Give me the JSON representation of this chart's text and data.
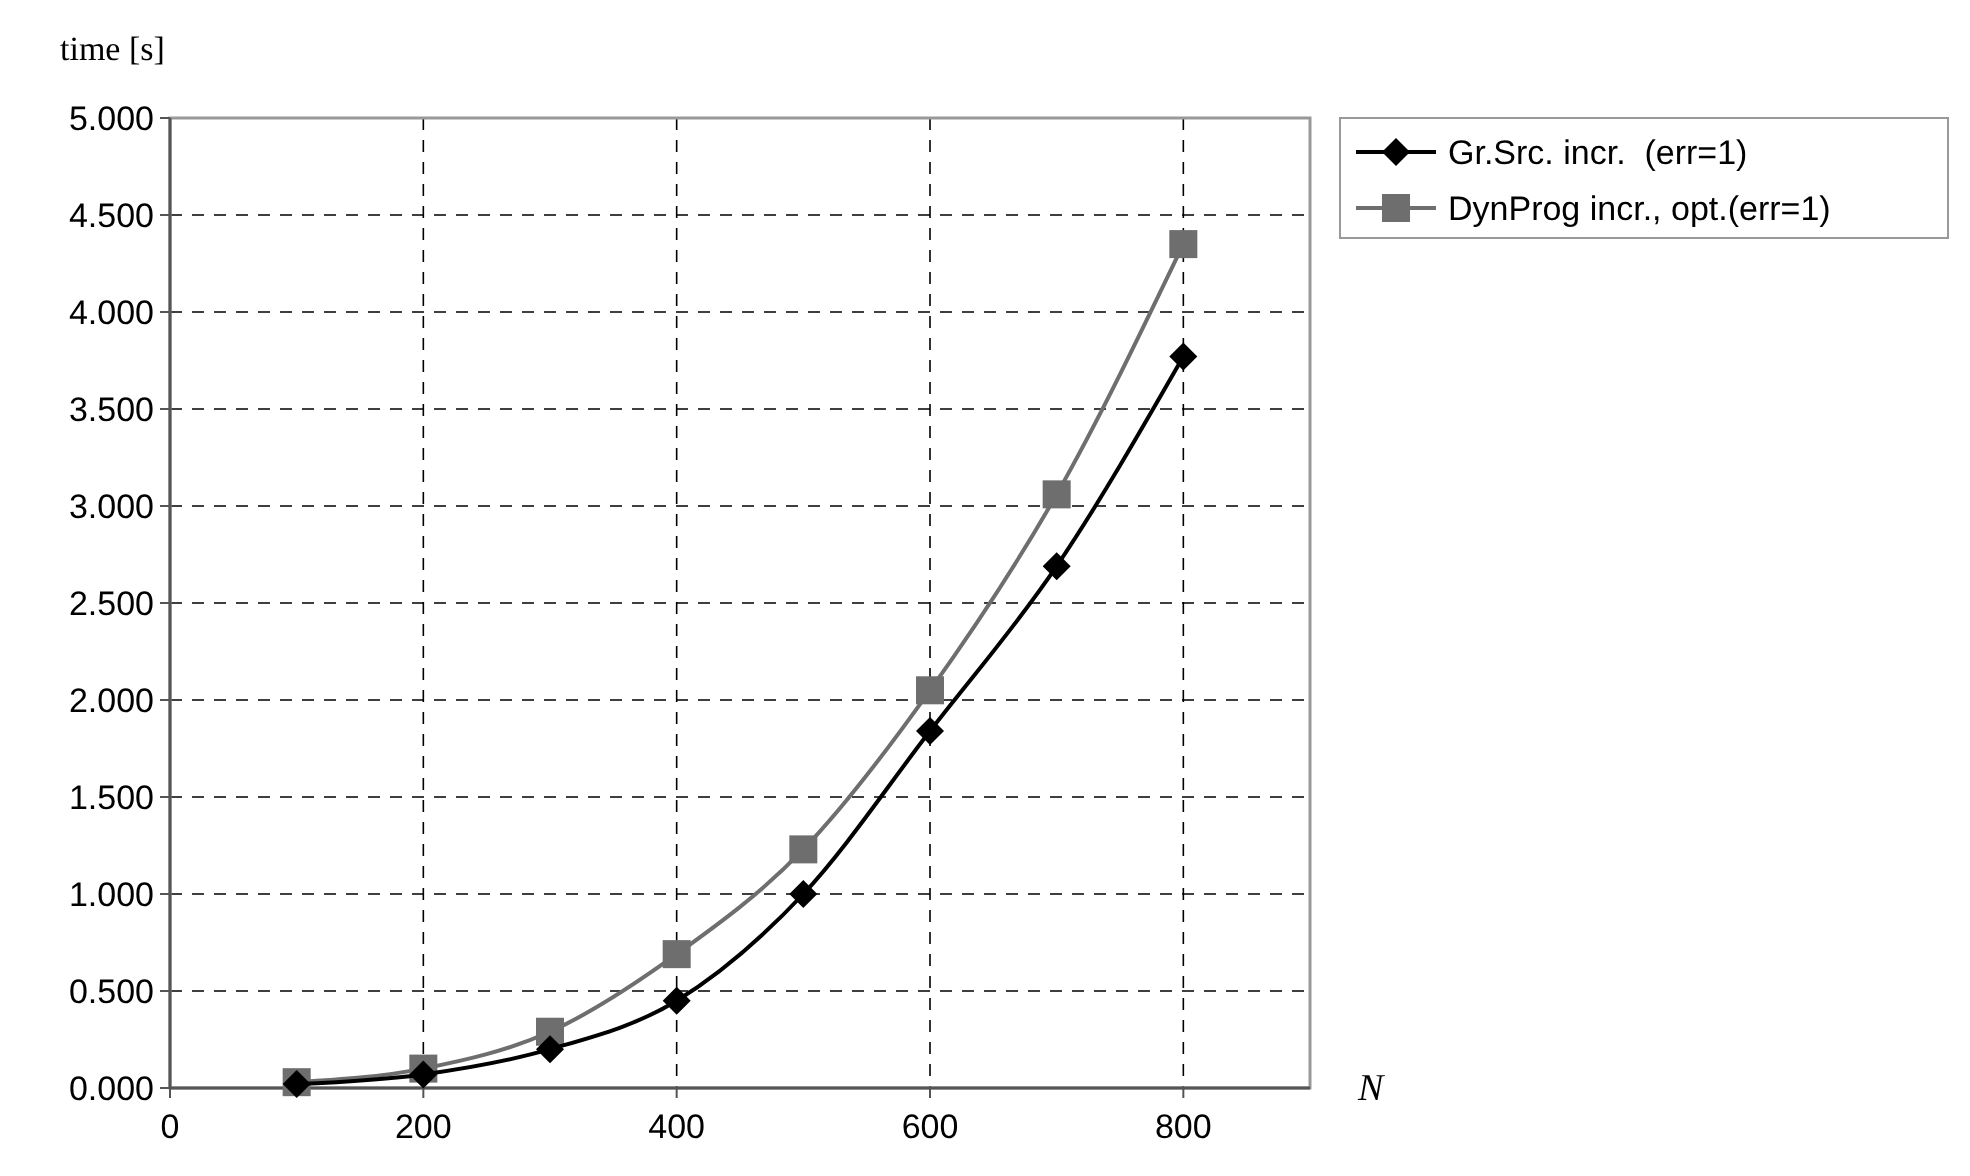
{
  "chart_data": {
    "type": "line",
    "xlabel": "N",
    "ylabel": "time [s]",
    "x": [
      100,
      200,
      300,
      400,
      500,
      600,
      700,
      800
    ],
    "xlim": [
      0,
      900
    ],
    "xticks": [
      0,
      200,
      400,
      600,
      800
    ],
    "ylim": [
      0,
      5
    ],
    "yticks": [
      {
        "value": 0,
        "label": "0.000"
      },
      {
        "value": 0.5,
        "label": "0.500"
      },
      {
        "value": 1,
        "label": "1.000"
      },
      {
        "value": 1.5,
        "label": "1.500"
      },
      {
        "value": 2,
        "label": "2.000"
      },
      {
        "value": 2.5,
        "label": "2.500"
      },
      {
        "value": 3,
        "label": "3.000"
      },
      {
        "value": 3.5,
        "label": "3.500"
      },
      {
        "value": 4,
        "label": "4.000"
      },
      {
        "value": 4.5,
        "label": "4.500"
      },
      {
        "value": 5,
        "label": "5.000"
      }
    ],
    "grid": true,
    "legend": "top right",
    "line_style": "solid",
    "series": [
      {
        "name": "Gr.Src. incr.  (err=1)",
        "color": "#000000",
        "marker": "diamond",
        "values": [
          0.02,
          0.07,
          0.2,
          0.45,
          1.0,
          1.84,
          2.69,
          3.77
        ]
      },
      {
        "name": "DynProg incr., opt.(err=1)",
        "color": "#6e6e6e",
        "marker": "square",
        "values": [
          0.03,
          0.1,
          0.29,
          0.69,
          1.23,
          2.05,
          3.06,
          4.35
        ]
      }
    ]
  }
}
